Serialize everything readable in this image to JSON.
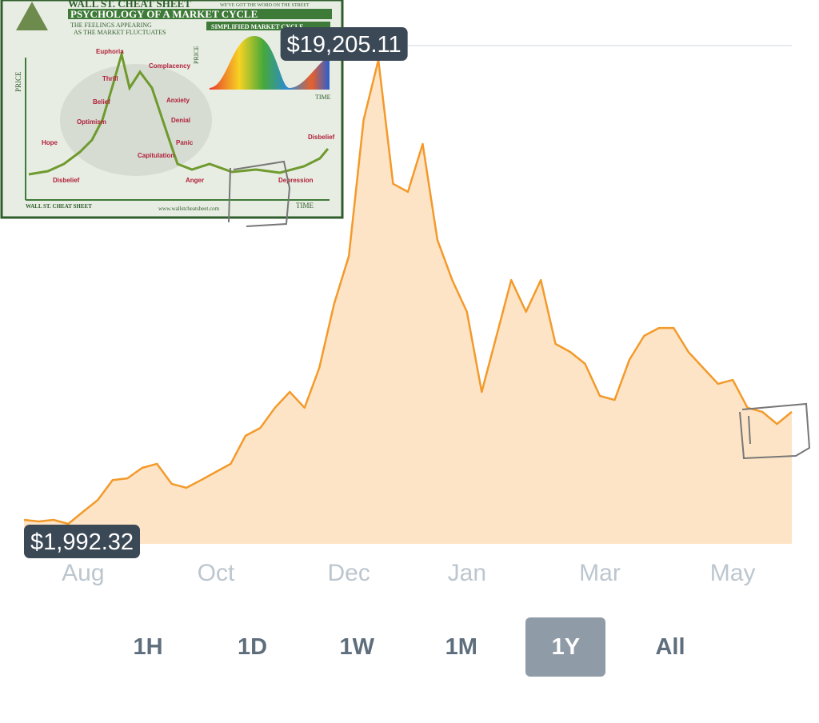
{
  "chart_data": {
    "type": "area",
    "categories": [
      null,
      null,
      null,
      null,
      "Aug",
      null,
      null,
      null,
      null,
      null,
      null,
      null,
      null,
      "Oct",
      null,
      null,
      null,
      null,
      null,
      null,
      null,
      null,
      "Dec",
      null,
      null,
      null,
      null,
      null,
      null,
      null,
      "Jan",
      null,
      null,
      null,
      null,
      null,
      null,
      null,
      null,
      "Mar",
      null,
      null,
      null,
      null,
      null,
      null,
      null,
      null,
      "May",
      null,
      null,
      null,
      null
    ],
    "values": [
      2140,
      2080,
      2140,
      1992.32,
      2440,
      2880,
      3620,
      3680,
      4070,
      4220,
      3480,
      3330,
      3620,
      3920,
      4220,
      5260,
      5550,
      6300,
      6890,
      6300,
      7780,
      10150,
      11930,
      16980,
      19205.11,
      14610,
      14310,
      16090,
      12530,
      11040,
      9860,
      6890,
      8970,
      11040,
      9860,
      11040,
      8670,
      8370,
      7930,
      6740,
      6590,
      8080,
      8970,
      9260,
      9260,
      8370,
      7780,
      7190,
      7330,
      6300,
      6150,
      5700,
      6150
    ],
    "value_labels": [
      null,
      null,
      null,
      "$1,992.32",
      null,
      null,
      null,
      null,
      null,
      null,
      null,
      null,
      null,
      null,
      null,
      null,
      null,
      null,
      null,
      null,
      null,
      null,
      null,
      null,
      "$19,205.11",
      null,
      null,
      null,
      null,
      null,
      null,
      null,
      null,
      null,
      null,
      null,
      null,
      null,
      null,
      null,
      null,
      null,
      null,
      null,
      null,
      null,
      null,
      null,
      null,
      null,
      null,
      null,
      null
    ],
    "color": "#f39a2b",
    "fill": "#fde4c6"
  },
  "time_range": {
    "options": [
      "1H",
      "1D",
      "1W",
      "1M",
      "1Y",
      "All"
    ],
    "selected": 4
  },
  "inset": {
    "brand": "WALL ST. CHEAT SHEET",
    "tagline": "WE'VE GOT THE WORD ON THE STREET",
    "title": "PSYCHOLOGY OF A MARKET CYCLE",
    "subtitle": [
      "THE FEELINGS APPEARING",
      "AS THE MARKET FLUCTUATES"
    ],
    "mini_title": "SIMPLIFIED MARKET CYCLE",
    "axis_price": "PRICE",
    "axis_time": "TIME",
    "footer_brand": "WALL ST. CHEAT SHEET",
    "url": "www.wallstcheatsheet.com",
    "stages": [
      "Disbelief",
      "Hope",
      "Optimism",
      "Belief",
      "Thrill",
      "Euphoria",
      "Complacency",
      "Anxiety",
      "Denial",
      "Panic",
      "Capitulation",
      "Anger",
      "Depression",
      "Disbelief"
    ]
  }
}
